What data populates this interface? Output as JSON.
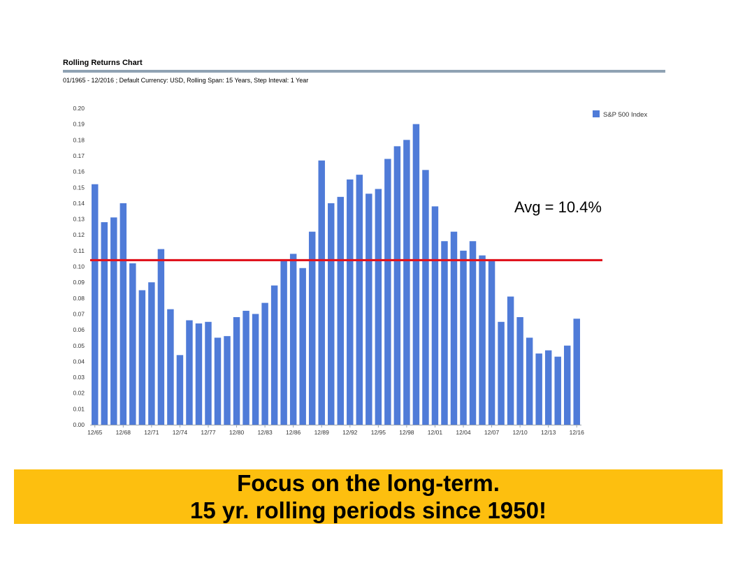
{
  "header": {
    "title": "Rolling Returns Chart",
    "subtitle": "01/1965 - 12/2016 ; Default Currency: USD, Rolling Span: 15 Years, Step Inteval: 1 Year"
  },
  "chart_data": {
    "type": "bar",
    "categories": [
      "12/65",
      "12/66",
      "12/67",
      "12/68",
      "12/69",
      "12/70",
      "12/71",
      "12/72",
      "12/73",
      "12/74",
      "12/75",
      "12/76",
      "12/77",
      "12/78",
      "12/79",
      "12/80",
      "12/81",
      "12/82",
      "12/83",
      "12/84",
      "12/85",
      "12/86",
      "12/87",
      "12/88",
      "12/89",
      "12/90",
      "12/91",
      "12/92",
      "12/93",
      "12/94",
      "12/95",
      "12/96",
      "12/97",
      "12/98",
      "12/99",
      "12/00",
      "12/01",
      "12/02",
      "12/03",
      "12/04",
      "12/05",
      "12/06",
      "12/07",
      "12/08",
      "12/09",
      "12/10",
      "12/11",
      "12/12",
      "12/13",
      "12/14",
      "12/15",
      "12/16"
    ],
    "tick_labels": [
      "12/65",
      "12/68",
      "12/71",
      "12/74",
      "12/77",
      "12/80",
      "12/83",
      "12/86",
      "12/89",
      "12/92",
      "12/95",
      "12/98",
      "12/01",
      "12/04",
      "12/07",
      "12/10",
      "12/13",
      "12/16"
    ],
    "series": [
      {
        "name": "S&P 500 Index",
        "color": "#4f7bd8",
        "values": [
          0.152,
          0.128,
          0.131,
          0.14,
          0.102,
          0.085,
          0.09,
          0.111,
          0.073,
          0.044,
          0.066,
          0.064,
          0.065,
          0.055,
          0.056,
          0.068,
          0.072,
          0.07,
          0.077,
          0.088,
          0.104,
          0.108,
          0.099,
          0.122,
          0.167,
          0.14,
          0.144,
          0.155,
          0.158,
          0.146,
          0.149,
          0.168,
          0.176,
          0.18,
          0.19,
          0.161,
          0.138,
          0.116,
          0.122,
          0.11,
          0.116,
          0.107,
          0.104,
          0.065,
          0.081,
          0.068,
          0.055,
          0.045,
          0.047,
          0.043,
          0.05,
          0.067
        ]
      }
    ],
    "ylim": [
      0,
      0.2
    ],
    "yticks": [
      "0.00",
      "0.01",
      "0.02",
      "0.03",
      "0.04",
      "0.05",
      "0.06",
      "0.07",
      "0.08",
      "0.09",
      "0.10",
      "0.11",
      "0.12",
      "0.13",
      "0.14",
      "0.15",
      "0.16",
      "0.17",
      "0.18",
      "0.19",
      "0.20"
    ],
    "xlabel": "",
    "ylabel": "",
    "grid": false,
    "legend_position": "top-right",
    "average_line": {
      "value": 0.104,
      "label": "Avg = 10.4%",
      "color": "#e0141e"
    }
  },
  "banner": {
    "line1": "Focus on the long-term.",
    "line2": "15 yr. rolling periods since 1950!",
    "color": "#fdbf0f"
  }
}
